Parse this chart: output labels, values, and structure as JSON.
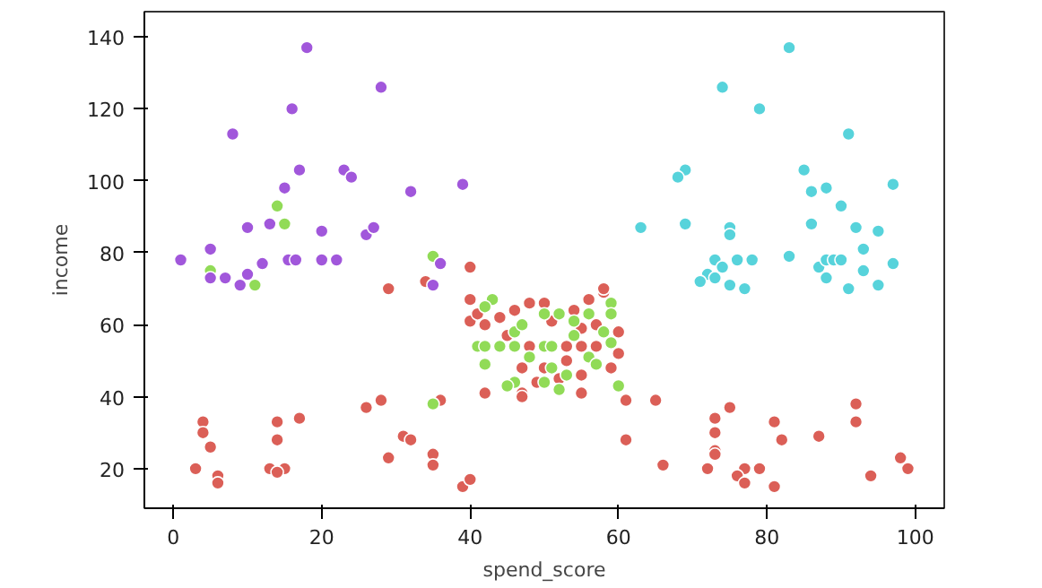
{
  "chart_data": {
    "type": "scatter",
    "xlabel": "spend_score",
    "ylabel": "income",
    "xlim": [
      -3.9,
      103.9
    ],
    "ylim": [
      9,
      147
    ],
    "xticks": [
      0,
      20,
      40,
      60,
      80,
      100
    ],
    "yticks": [
      20,
      40,
      60,
      80,
      100,
      120,
      140
    ],
    "grid": false,
    "marker": "circle",
    "series": [
      {
        "color": "#db5f57",
        "x": [
          40,
          29,
          34,
          4,
          4,
          5,
          3,
          6,
          6,
          14,
          14,
          17,
          13,
          15,
          14,
          26,
          28,
          31,
          32,
          29,
          35,
          35,
          36,
          39,
          40,
          61,
          65,
          61,
          66,
          73,
          73,
          73,
          73,
          75,
          72,
          77,
          79,
          76,
          77,
          81,
          82,
          81,
          87,
          92,
          92,
          98,
          99,
          94,
          40,
          40,
          41,
          42,
          46,
          48,
          50,
          54,
          56,
          58,
          60,
          48,
          53,
          55,
          57,
          55,
          47,
          50,
          52,
          55,
          59,
          42,
          47,
          55,
          47,
          58,
          44,
          51,
          45,
          53,
          57,
          49,
          60
        ],
        "values": [
          76,
          70,
          72,
          33,
          30,
          26,
          20,
          18,
          16,
          33,
          28,
          34,
          20,
          20,
          19,
          37,
          39,
          29,
          28,
          23,
          24,
          21,
          39,
          15,
          17,
          39,
          39,
          28,
          21,
          34,
          30,
          25,
          24,
          37,
          20,
          20,
          20,
          18,
          16,
          33,
          28,
          15,
          29,
          38,
          33,
          23,
          20,
          18,
          67,
          61,
          63,
          60,
          64,
          66,
          66,
          64,
          67,
          69,
          58,
          54,
          54,
          54,
          54,
          59,
          48,
          48,
          45,
          46,
          48,
          41,
          41,
          41,
          40,
          70,
          62,
          61,
          57,
          50,
          60,
          44,
          52
        ]
      },
      {
        "color": "#91db57",
        "x": [
          14,
          15,
          5,
          11,
          35,
          35,
          43,
          42,
          41,
          42,
          44,
          46,
          50,
          51,
          46,
          47,
          50,
          52,
          54,
          56,
          59,
          59,
          58,
          42,
          48,
          51,
          53,
          56,
          46,
          45,
          50,
          52,
          60,
          57,
          59,
          54
        ],
        "values": [
          93,
          88,
          75,
          71,
          79,
          38,
          67,
          65,
          54,
          54,
          54,
          54,
          54,
          54,
          58,
          60,
          63,
          63,
          61,
          63,
          66,
          63,
          58,
          49,
          51,
          48,
          46,
          51,
          44,
          43,
          44,
          42,
          43,
          49,
          55,
          57
        ]
      },
      {
        "color": "#57d3db",
        "x": [
          83,
          74,
          79,
          91,
          69,
          68,
          85,
          86,
          88,
          97,
          90,
          63,
          69,
          75,
          75,
          86,
          92,
          95,
          93,
          83,
          73,
          74,
          76,
          78,
          72,
          73,
          71,
          75,
          77,
          87,
          88,
          89,
          90,
          88,
          93,
          97,
          91,
          95
        ],
        "values": [
          137,
          126,
          120,
          113,
          103,
          101,
          103,
          97,
          98,
          99,
          93,
          87,
          88,
          87,
          85,
          88,
          87,
          86,
          81,
          79,
          78,
          76,
          78,
          78,
          74,
          73,
          72,
          71,
          70,
          76,
          78,
          78,
          78,
          73,
          75,
          77,
          70,
          71
        ]
      },
      {
        "color": "#a157db",
        "x": [
          18,
          28,
          16,
          8,
          17,
          23,
          24,
          15,
          39,
          32,
          10,
          13,
          20,
          26,
          27,
          5,
          1,
          15.5,
          16.5,
          20,
          22,
          5,
          7,
          10,
          12,
          9,
          36,
          35
        ],
        "values": [
          137,
          126,
          120,
          113,
          103,
          103,
          101,
          98,
          99,
          97,
          87,
          88,
          86,
          85,
          87,
          81,
          78,
          78,
          78,
          78,
          78,
          73,
          73,
          74,
          77,
          71,
          77,
          71
        ]
      }
    ]
  }
}
